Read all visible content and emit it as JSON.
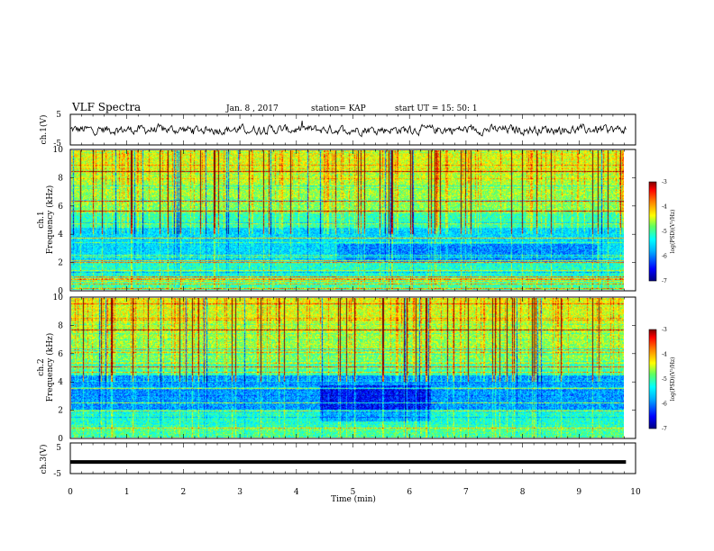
{
  "header": {
    "title": "VLF Spectra",
    "date": "Jan. 8 , 2017",
    "station": "station= KAP",
    "start": "start UT = 15: 50: 1"
  },
  "colors": {
    "colormap": [
      "#000080",
      "#0000ff",
      "#00a0ff",
      "#00ffff",
      "#40ff80",
      "#a0ff00",
      "#ffff00",
      "#ff8000",
      "#ff0000",
      "#800000"
    ]
  },
  "chart_data": [
    {
      "type": "line",
      "panel": "ch1-waveform",
      "ylabel": "ch.1(V)",
      "ylim": [
        -5,
        5
      ],
      "yticks": [
        "5",
        "-5"
      ],
      "xlim": [
        0,
        10
      ],
      "x_start": 0,
      "x_end": 9.83,
      "noise_amplitude_v": 1.3
    },
    {
      "type": "heatmap",
      "panel": "ch1-spectrogram",
      "ylabel": "ch.1 Frequency (kHz)",
      "ylabel_line1": "ch.1",
      "ylabel_line2": "Frequency (kHz)",
      "ylim": [
        0,
        10
      ],
      "yticks": [
        "0",
        "2",
        "4",
        "6",
        "8",
        "10"
      ],
      "xlim": [
        0,
        10
      ],
      "x_end": 9.83,
      "colorbar": {
        "label": "log(PSD)(V²/Hz)",
        "range": [
          -7,
          -3
        ],
        "ticks": [
          "-3",
          "-4",
          "-5",
          "-6",
          "-7"
        ]
      }
    },
    {
      "type": "heatmap",
      "panel": "ch2-spectrogram",
      "ylabel": "ch.2 Frequency (kHz)",
      "ylabel_line1": "ch.2",
      "ylabel_line2": "Frequency (kHz)",
      "ylim": [
        0,
        10
      ],
      "yticks": [
        "0",
        "2",
        "4",
        "6",
        "8",
        "10"
      ],
      "xlim": [
        0,
        10
      ],
      "x_end": 9.83,
      "colorbar": {
        "label": "log(PSD)(V²/Hz)",
        "range": [
          -7,
          -3
        ],
        "ticks": [
          "-3",
          "-4",
          "-5",
          "-6",
          "-7"
        ]
      }
    },
    {
      "type": "line",
      "panel": "ch3-waveform",
      "ylabel": "ch.3(V)",
      "ylim": [
        -5,
        5
      ],
      "yticks": [
        "5",
        "-5"
      ],
      "xlim": [
        0,
        10
      ],
      "x_start": 0,
      "x_end": 9.83,
      "constant_value_v": -1.2
    }
  ],
  "xaxis": {
    "label": "Time (min)",
    "ticks": [
      "0",
      "1",
      "2",
      "3",
      "4",
      "5",
      "6",
      "7",
      "8",
      "9",
      "10"
    ]
  }
}
